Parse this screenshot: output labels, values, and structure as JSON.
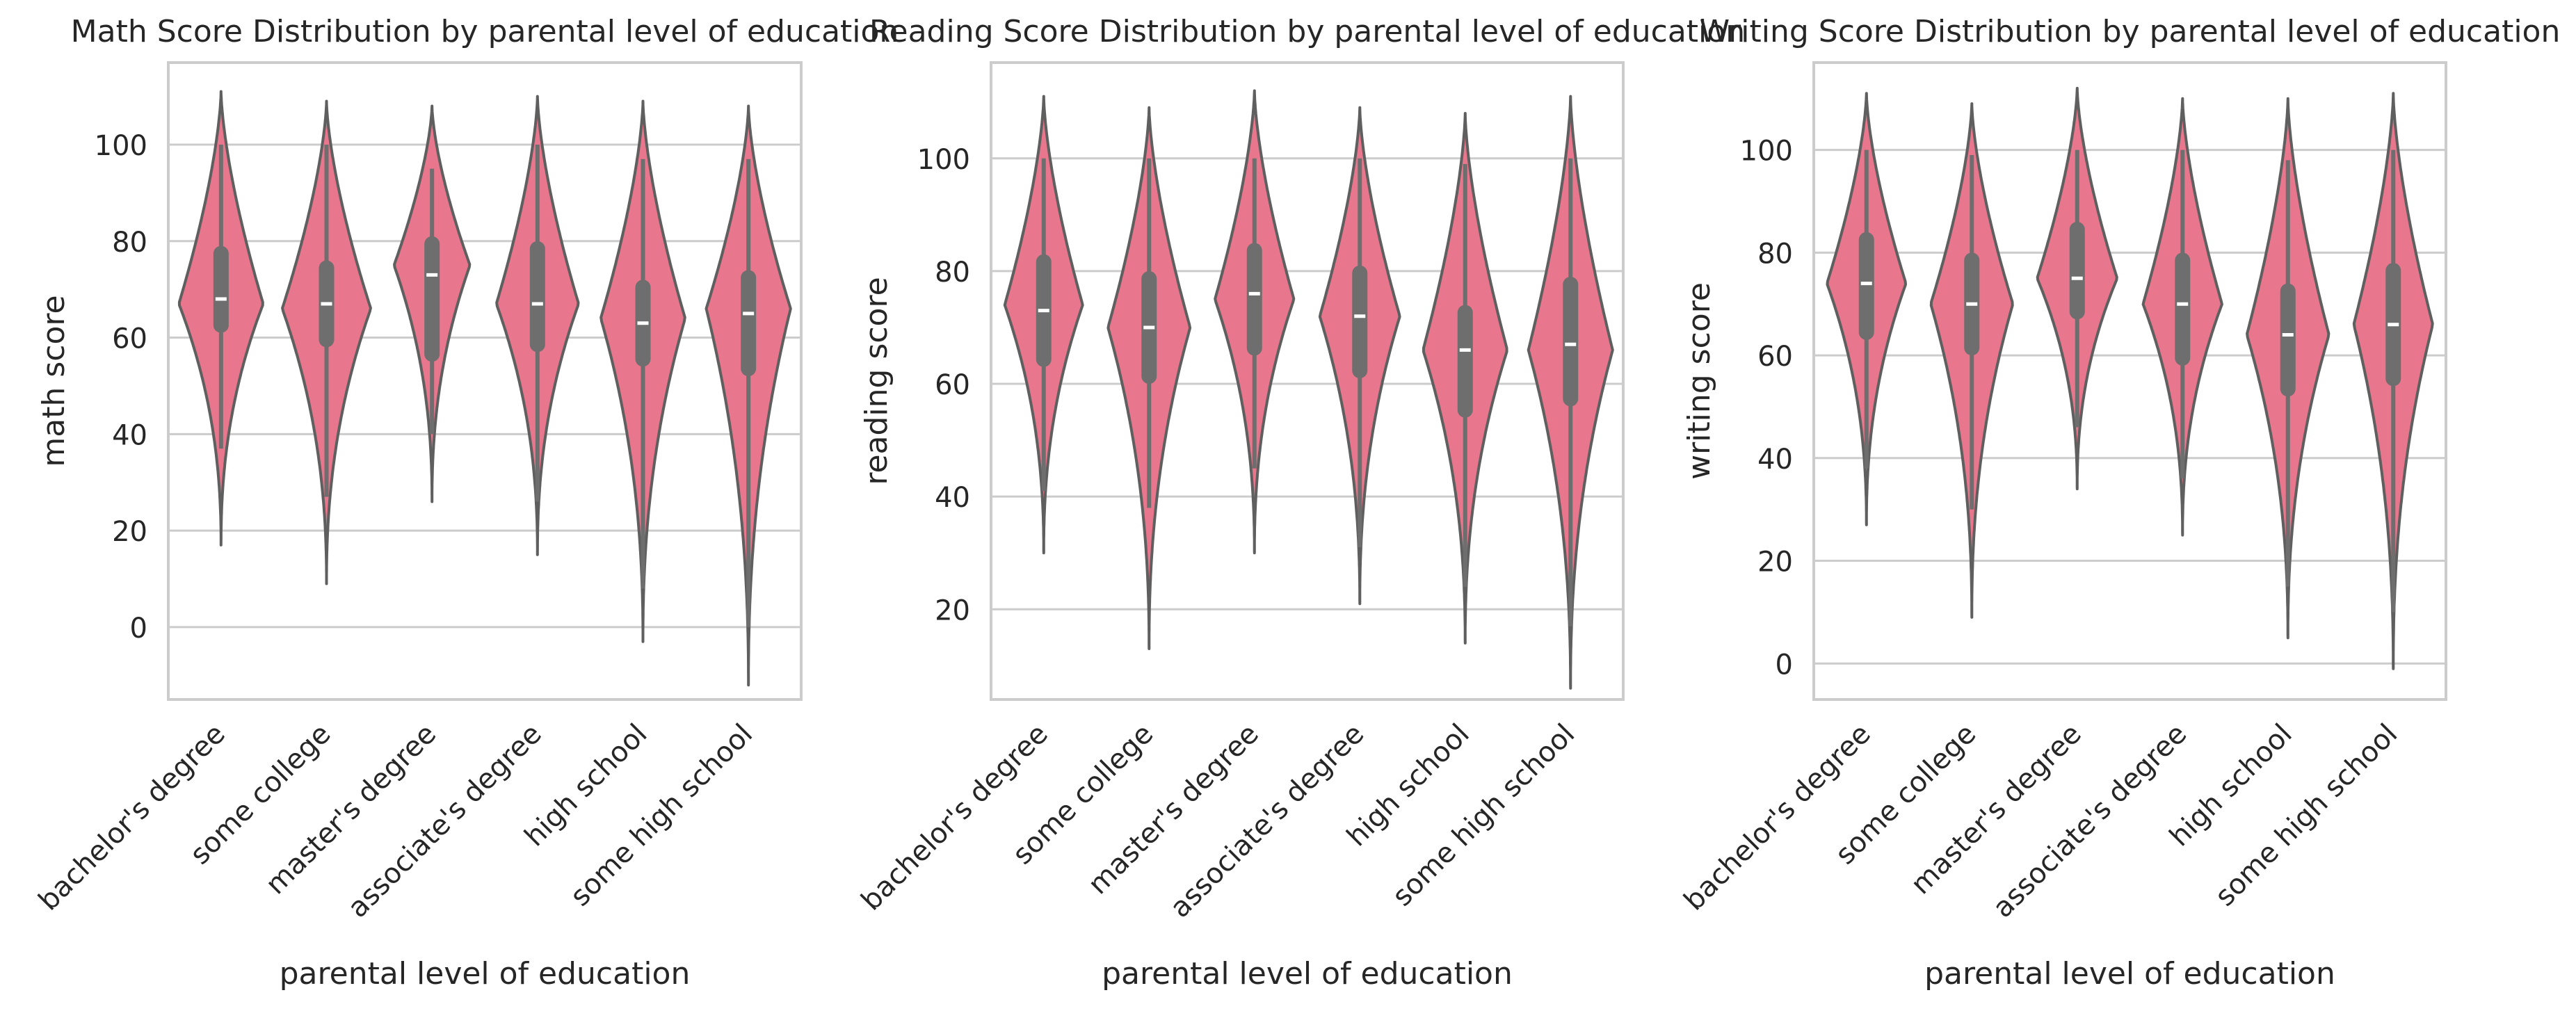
{
  "chart_data": [
    {
      "type": "violin",
      "title": "Math Score Distribution by parental level of education",
      "xlabel": "parental level of education",
      "ylabel": "math score",
      "ylim": [
        -15,
        117
      ],
      "yticks": [
        0,
        20,
        40,
        60,
        80,
        100
      ],
      "grid": "y",
      "color": "#e8768d",
      "categories": [
        "bachelor's degree",
        "some college",
        "master's degree",
        "associate's degree",
        "high school",
        "some high school"
      ],
      "series": [
        {
          "category": "bachelor's degree",
          "kde_min": 17,
          "kde_max": 111,
          "whisker_low": 37,
          "whisker_high": 100,
          "q1": 61,
          "median": 68,
          "q3": 79,
          "mode": 67,
          "max_width": 0.8
        },
        {
          "category": "some college",
          "kde_min": 9,
          "kde_max": 109,
          "whisker_low": 27,
          "whisker_high": 100,
          "q1": 58,
          "median": 67,
          "q3": 76,
          "mode": 66,
          "max_width": 0.84
        },
        {
          "category": "master's degree",
          "kde_min": 26,
          "kde_max": 108,
          "whisker_low": 40,
          "whisker_high": 95,
          "q1": 55,
          "median": 73,
          "q3": 81,
          "mode": 75,
          "max_width": 0.72
        },
        {
          "category": "associate's degree",
          "kde_min": 15,
          "kde_max": 110,
          "whisker_low": 26,
          "whisker_high": 100,
          "q1": 57,
          "median": 67,
          "q3": 80,
          "mode": 67,
          "max_width": 0.78
        },
        {
          "category": "high school",
          "kde_min": -3,
          "kde_max": 109,
          "whisker_low": 8,
          "whisker_high": 97,
          "q1": 54,
          "median": 63,
          "q3": 72,
          "mode": 64,
          "max_width": 0.8
        },
        {
          "category": "some high school",
          "kde_min": -12,
          "kde_max": 108,
          "whisker_low": 0,
          "whisker_high": 97,
          "q1": 52,
          "median": 65,
          "q3": 74,
          "mode": 66,
          "max_width": 0.8
        }
      ]
    },
    {
      "type": "violin",
      "title": "Reading Score Distribution by parental level of education",
      "xlabel": "parental level of education",
      "ylabel": "reading score",
      "ylim": [
        4,
        117
      ],
      "yticks": [
        20,
        40,
        60,
        80,
        100
      ],
      "grid": "y",
      "color": "#e8768d",
      "categories": [
        "bachelor's degree",
        "some college",
        "master's degree",
        "associate's degree",
        "high school",
        "some high school"
      ],
      "series": [
        {
          "category": "bachelor's degree",
          "kde_min": 30,
          "kde_max": 111,
          "whisker_low": 41,
          "whisker_high": 100,
          "q1": 63,
          "median": 73,
          "q3": 83,
          "mode": 74,
          "max_width": 0.74
        },
        {
          "category": "some college",
          "kde_min": 13,
          "kde_max": 109,
          "whisker_low": 38,
          "whisker_high": 100,
          "q1": 60,
          "median": 70,
          "q3": 80,
          "mode": 70,
          "max_width": 0.78
        },
        {
          "category": "master's degree",
          "kde_min": 30,
          "kde_max": 112,
          "whisker_low": 45,
          "whisker_high": 100,
          "q1": 65,
          "median": 76,
          "q3": 85,
          "mode": 75,
          "max_width": 0.75
        },
        {
          "category": "associate's degree",
          "kde_min": 21,
          "kde_max": 109,
          "whisker_low": 31,
          "whisker_high": 100,
          "q1": 61,
          "median": 72,
          "q3": 81,
          "mode": 72,
          "max_width": 0.76
        },
        {
          "category": "high school",
          "kde_min": 14,
          "kde_max": 108,
          "whisker_low": 24,
          "whisker_high": 99,
          "q1": 54,
          "median": 66,
          "q3": 74,
          "mode": 66,
          "max_width": 0.8
        },
        {
          "category": "some high school",
          "kde_min": 6,
          "kde_max": 111,
          "whisker_low": 17,
          "whisker_high": 100,
          "q1": 56,
          "median": 67,
          "q3": 79,
          "mode": 66,
          "max_width": 0.8
        }
      ]
    },
    {
      "type": "violin",
      "title": "Writing Score Distribution by parental level of education",
      "xlabel": "parental level of education",
      "ylabel": "writing score",
      "ylim": [
        -7,
        117
      ],
      "yticks": [
        0,
        20,
        40,
        60,
        80,
        100
      ],
      "grid": "y",
      "color": "#e8768d",
      "categories": [
        "bachelor's degree",
        "some college",
        "master's degree",
        "associate's degree",
        "high school",
        "some high school"
      ],
      "series": [
        {
          "category": "bachelor's degree",
          "kde_min": 27,
          "kde_max": 111,
          "whisker_low": 38,
          "whisker_high": 100,
          "q1": 63,
          "median": 74,
          "q3": 84,
          "mode": 74,
          "max_width": 0.75
        },
        {
          "category": "some college",
          "kde_min": 9,
          "kde_max": 109,
          "whisker_low": 30,
          "whisker_high": 99,
          "q1": 60,
          "median": 70,
          "q3": 80,
          "mode": 70,
          "max_width": 0.78
        },
        {
          "category": "master's degree",
          "kde_min": 34,
          "kde_max": 112,
          "whisker_low": 46,
          "whisker_high": 100,
          "q1": 67,
          "median": 75,
          "q3": 86,
          "mode": 75,
          "max_width": 0.76
        },
        {
          "category": "associate's degree",
          "kde_min": 25,
          "kde_max": 110,
          "whisker_low": 36,
          "whisker_high": 100,
          "q1": 58,
          "median": 70,
          "q3": 80,
          "mode": 70,
          "max_width": 0.75
        },
        {
          "category": "high school",
          "kde_min": 5,
          "kde_max": 110,
          "whisker_low": 15,
          "whisker_high": 98,
          "q1": 52,
          "median": 64,
          "q3": 74,
          "mode": 64,
          "max_width": 0.78
        },
        {
          "category": "some high school",
          "kde_min": -1,
          "kde_max": 111,
          "whisker_low": 10,
          "whisker_high": 100,
          "q1": 54,
          "median": 66,
          "q3": 78,
          "mode": 66,
          "max_width": 0.75
        }
      ]
    }
  ]
}
